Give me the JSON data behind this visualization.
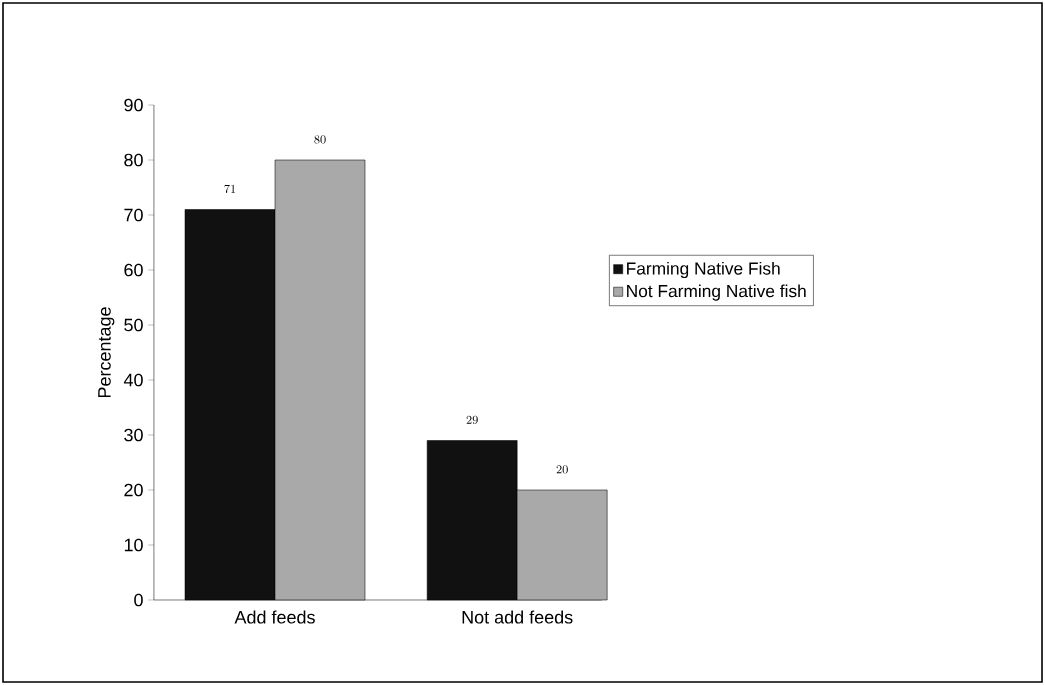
{
  "chart_data": {
    "type": "bar",
    "ylabel": "Percentage",
    "categories": [
      "Add feeds",
      "Not add feeds"
    ],
    "series": [
      {
        "name": "Farming Native Fish",
        "color": "#111111",
        "values": [
          71,
          29
        ]
      },
      {
        "name": "Not Farming Native fish",
        "color": "#a9a9a9",
        "values": [
          80,
          20
        ]
      }
    ],
    "ylim": [
      0,
      90
    ],
    "yticks": [
      0,
      10,
      20,
      30,
      40,
      50,
      60,
      70,
      80,
      90
    ],
    "data_labels": true,
    "legend": "right",
    "grid": false
  }
}
